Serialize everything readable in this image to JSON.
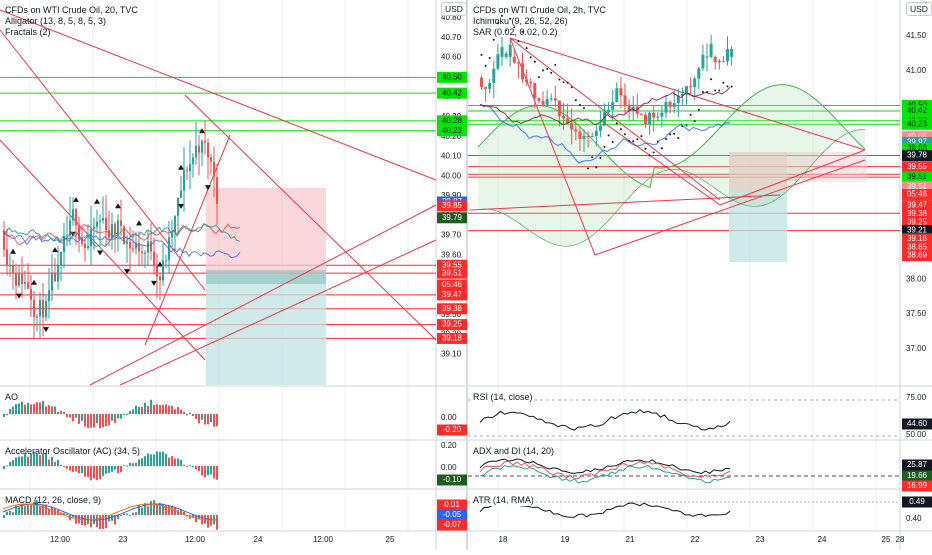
{
  "layout_name": "two-chart split layout",
  "colors": {
    "bull": "#26a69a",
    "bear": "#ef5350",
    "trend": "#f23645",
    "level_green": "#00e600",
    "level_red": "#ff2b2b",
    "grid": "#eceff4",
    "axis_text": "#131722"
  },
  "left": {
    "currency": "USD",
    "title": "CFDs on WTI Crude Oil, 20, TVC",
    "legend": [
      "Alligator (13, 8, 5, 8, 5, 3)",
      "Fractals (2)"
    ],
    "price_ticks": [
      "40.80",
      "40.70",
      "40.60",
      "40.50",
      "40.40",
      "40.30",
      "40.20",
      "40.10",
      "40.00",
      "39.90",
      "39.80",
      "39.70",
      "39.60",
      "39.50",
      "39.40",
      "39.30",
      "39.20",
      "39.10"
    ],
    "price_badges": [
      {
        "label": "40.50",
        "price": 40.5,
        "kind": "green"
      },
      {
        "label": "40.42",
        "price": 40.42,
        "kind": "green"
      },
      {
        "label": "40.28",
        "price": 40.28,
        "kind": "green"
      },
      {
        "label": "40.23",
        "price": 40.23,
        "kind": "green"
      },
      {
        "label": "39.87",
        "price": 39.87,
        "kind": "blue"
      },
      {
        "label": "39.85",
        "price": 39.85,
        "kind": "red"
      },
      {
        "label": "39.79",
        "price": 39.79,
        "kind": "dkgreen"
      },
      {
        "label": "39.55",
        "price": 39.55,
        "kind": "red"
      },
      {
        "label": "39.51",
        "price": 39.51,
        "kind": "red"
      },
      {
        "label": "05:46",
        "price": 39.45,
        "kind": "timer"
      },
      {
        "label": "39.47",
        "price": 39.4,
        "kind": "red"
      },
      {
        "label": "39.38",
        "price": 39.33,
        "kind": "red"
      },
      {
        "label": "39.25",
        "price": 39.25,
        "kind": "red"
      },
      {
        "label": "39.18",
        "price": 39.18,
        "kind": "red"
      }
    ],
    "time_ticks": [
      "12:00",
      "23",
      "12:00",
      "24",
      "12:00",
      "25"
    ],
    "ao": {
      "title": "AO",
      "ticks": [
        "0.00"
      ],
      "value": "-0.20"
    },
    "ac": {
      "title": "Accelerator Oscillator (AC) (34, 5)",
      "ticks": [
        "0.20",
        "0.00"
      ],
      "value": "-0.10"
    },
    "macd": {
      "title": "MACD (12, 26, close, 9)",
      "values": [
        "0.01",
        "-0.05",
        "-0.07"
      ]
    }
  },
  "right": {
    "currency": "USD",
    "title": "CFDs on WTI Crude Oil, 2h, TVC",
    "legend": [
      "Ichimoku (9, 26, 52, 26)",
      "SAR (0.02, 0.02, 0.2)"
    ],
    "price_ticks": [
      "41.50",
      "41.00",
      "40.50",
      "40.00",
      "39.50",
      "39.00",
      "38.50",
      "38.00",
      "37.50",
      "37.00"
    ],
    "price_badges": [
      {
        "label": "40.50",
        "price": 40.5,
        "kind": "green"
      },
      {
        "label": "40.42",
        "price": 40.42,
        "kind": "green"
      },
      {
        "label": "40.28",
        "price": 40.28,
        "kind": "green"
      },
      {
        "label": "40.23",
        "price": 40.23,
        "kind": "green"
      },
      {
        "label": "40.05",
        "price": 40.05,
        "kind": "pink"
      },
      {
        "label": "39.97",
        "price": 39.97,
        "kind": "teal"
      },
      {
        "label": "39.88",
        "price": 39.88,
        "kind": "green"
      },
      {
        "label": "39.78",
        "price": 39.78,
        "kind": "dark"
      },
      {
        "label": "39.55",
        "price": 39.62,
        "kind": "red"
      },
      {
        "label": "39.51",
        "price": 39.47,
        "kind": "green"
      },
      {
        "label": "39.51",
        "price": 39.33,
        "kind": "pink"
      },
      {
        "label": "05:46",
        "price": 39.22,
        "kind": "timer"
      },
      {
        "label": "39.47",
        "price": 39.06,
        "kind": "red"
      },
      {
        "label": "39.38",
        "price": 38.94,
        "kind": "red"
      },
      {
        "label": "39.25",
        "price": 38.82,
        "kind": "red"
      },
      {
        "label": "39.21",
        "price": 38.7,
        "kind": "black"
      },
      {
        "label": "39.18",
        "price": 38.58,
        "kind": "red"
      },
      {
        "label": "38.85",
        "price": 38.46,
        "kind": "red"
      },
      {
        "label": "38.69",
        "price": 38.34,
        "kind": "red"
      }
    ],
    "time_ticks": [
      "18",
      "19",
      "21",
      "22",
      "23",
      "24",
      "25",
      "28"
    ],
    "rsi": {
      "title": "RSI (14, close)",
      "ticks": [
        "75.00",
        "50.00"
      ],
      "value": "44.60"
    },
    "adx": {
      "title": "ADX and DI (14, 20)",
      "values": [
        "25.87",
        "19.66",
        "16.99"
      ]
    },
    "atr": {
      "title": "ATR (14, RMA)",
      "ticks": [
        "0.40"
      ],
      "value": "0.49"
    }
  }
}
